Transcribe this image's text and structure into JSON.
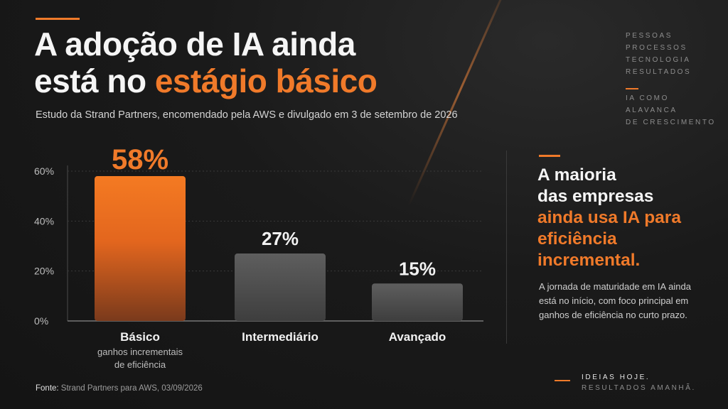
{
  "title": {
    "line1": "A adoção de IA ainda",
    "line2_plain": "está no ",
    "line2_highlight": "estágio básico"
  },
  "subtitle": "Estudo da Strand Partners, encomendado pela AWS e divulgado em 3 de setembro de 2026",
  "nav": {
    "items": [
      "PESSOAS",
      "PROCESSOS",
      "TECNOLOGIA",
      "RESULTADOS"
    ],
    "section": [
      "IA COMO",
      "ALAVANCA",
      "DE CRESCIMENTO"
    ]
  },
  "chart_data": {
    "type": "bar",
    "categories": [
      "Básico",
      "Intermediário",
      "Avançado"
    ],
    "category_sublabels": [
      "ganhos incrementais\nde eficiência",
      "",
      ""
    ],
    "values": [
      58,
      27,
      15
    ],
    "value_labels": [
      "58%",
      "27%",
      "15%"
    ],
    "y_ticks": [
      0,
      20,
      40,
      60
    ],
    "y_tick_labels": [
      "0%",
      "20%",
      "40%",
      "60%"
    ],
    "ylim": [
      0,
      60
    ],
    "grid": true,
    "colors": [
      "#f07a2a",
      "#5a5a5a",
      "#5a5a5a"
    ],
    "value_label_colors": [
      "#f07a2a",
      "#f2f2f2",
      "#f2f2f2"
    ]
  },
  "headline": {
    "line1": "A maioria",
    "line2": "das empresas",
    "line3": "ainda usa IA para",
    "line4": "eficiência",
    "line5": "incremental."
  },
  "body": "A jornada de maturidade em IA ainda está no início, com foco principal em ganhos de eficiência no curto prazo.",
  "source": {
    "label": "Fonte:",
    "text": " Strand Partners para AWS, 03/09/2026"
  },
  "tagline": {
    "line1": "IDEIAS HOJE.",
    "line2": "RESULTADOS AMANHÃ."
  },
  "colors": {
    "accent": "#f07a2a",
    "background": "#171717",
    "bar_neutral": "#5a5a5a"
  }
}
